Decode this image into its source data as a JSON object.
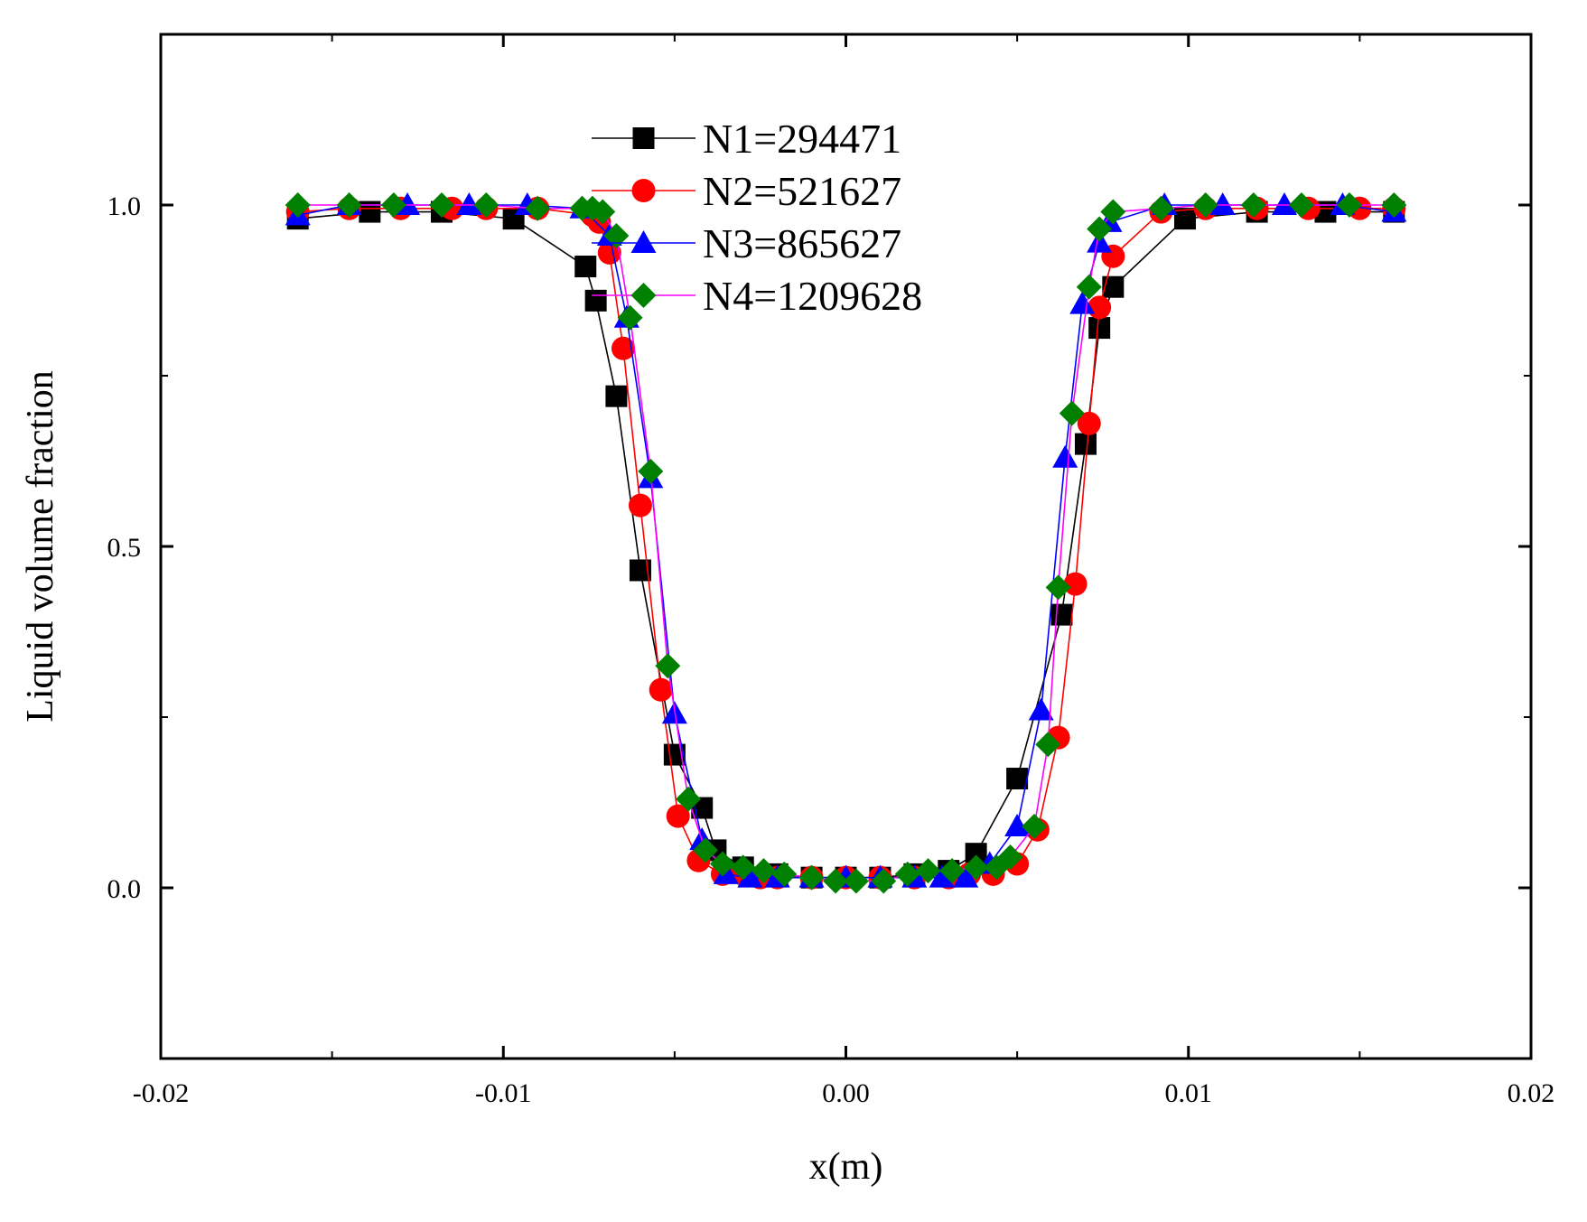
{
  "chart_data": {
    "type": "line",
    "xlabel": "x(m)",
    "ylabel": "Liquid volume fraction",
    "xlim": [
      -0.02,
      0.02
    ],
    "ylim": [
      -0.25,
      1.25
    ],
    "xticks": [
      -0.02,
      -0.01,
      0.0,
      0.01,
      0.02
    ],
    "xtick_labels": [
      "-0.02",
      "-0.01",
      "0.00",
      "0.01",
      "0.02"
    ],
    "yticks": [
      0.0,
      0.5,
      1.0
    ],
    "ytick_labels": [
      "0.0",
      "0.5",
      "1.0"
    ],
    "grid": false,
    "legend_position": "top-center",
    "series": [
      {
        "name": "N1=294471",
        "color": "#000000",
        "marker_color": "#000000",
        "marker": "square",
        "x": [
          -0.016,
          -0.0139,
          -0.0118,
          -0.0097,
          -0.0076,
          -0.0073,
          -0.0067,
          -0.006,
          -0.005,
          -0.0042,
          -0.0038,
          -0.003,
          -0.002,
          -0.001,
          0.0,
          0.001,
          0.002,
          0.003,
          0.0038,
          0.005,
          0.0063,
          0.007,
          0.0074,
          0.0078,
          0.0099,
          0.012,
          0.014,
          0.016
        ],
        "y": [
          0.98,
          0.99,
          0.99,
          0.98,
          0.91,
          0.86,
          0.72,
          0.465,
          0.195,
          0.117,
          0.055,
          0.03,
          0.02,
          0.015,
          0.015,
          0.015,
          0.02,
          0.025,
          0.05,
          0.16,
          0.4,
          0.65,
          0.82,
          0.88,
          0.98,
          0.99,
          0.99,
          0.99
        ]
      },
      {
        "name": "N2=521627",
        "color": "#ff0000",
        "marker_color": "#ff0000",
        "marker": "circle",
        "x": [
          -0.016,
          -0.0145,
          -0.013,
          -0.0115,
          -0.0105,
          -0.009,
          -0.0074,
          -0.0072,
          -0.0069,
          -0.0065,
          -0.006,
          -0.0054,
          -0.0049,
          -0.0043,
          -0.0036,
          -0.003,
          -0.0025,
          -0.002,
          -0.001,
          0.0,
          0.001,
          0.002,
          0.003,
          0.0036,
          0.0043,
          0.005,
          0.0056,
          0.0062,
          0.0067,
          0.0071,
          0.0074,
          0.0078,
          0.0092,
          0.0105,
          0.012,
          0.0135,
          0.015,
          0.016
        ],
        "y": [
          0.99,
          0.995,
          0.995,
          0.995,
          0.995,
          0.995,
          0.985,
          0.975,
          0.93,
          0.79,
          0.56,
          0.29,
          0.105,
          0.04,
          0.02,
          0.02,
          0.015,
          0.015,
          0.015,
          0.015,
          0.015,
          0.015,
          0.015,
          0.02,
          0.02,
          0.035,
          0.085,
          0.22,
          0.445,
          0.68,
          0.85,
          0.925,
          0.99,
          0.995,
          0.995,
          0.995,
          0.995,
          0.995
        ]
      },
      {
        "name": "N3=865627",
        "color": "#0000ff",
        "marker_color": "#0000ff",
        "marker": "triangle",
        "x": [
          -0.016,
          -0.0145,
          -0.0128,
          -0.011,
          -0.0093,
          -0.0077,
          -0.0069,
          -0.0064,
          -0.0057,
          -0.005,
          -0.0042,
          -0.0035,
          -0.0028,
          -0.002,
          -0.001,
          0.0,
          0.001,
          0.002,
          0.0028,
          0.0035,
          0.0042,
          0.005,
          0.0057,
          0.0064,
          0.0069,
          0.0074,
          0.0077,
          0.0093,
          0.011,
          0.0128,
          0.0145,
          0.016
        ],
        "y": [
          0.985,
          1.0,
          1.0,
          1.0,
          1.0,
          0.995,
          0.955,
          0.835,
          0.6,
          0.255,
          0.07,
          0.02,
          0.015,
          0.015,
          0.015,
          0.015,
          0.015,
          0.015,
          0.015,
          0.015,
          0.035,
          0.09,
          0.26,
          0.63,
          0.855,
          0.945,
          0.975,
          1.0,
          1.0,
          1.0,
          1.0,
          0.99
        ]
      },
      {
        "name": "N4=1209628",
        "color": "#ff00ff",
        "marker_color": "#008000",
        "marker": "diamond",
        "x": [
          -0.016,
          -0.0145,
          -0.0132,
          -0.0118,
          -0.0105,
          -0.009,
          -0.0077,
          -0.0074,
          -0.0071,
          -0.0067,
          -0.0063,
          -0.0057,
          -0.0052,
          -0.0046,
          -0.0041,
          -0.0036,
          -0.003,
          -0.0024,
          -0.0018,
          -0.001,
          -0.0003,
          0.0003,
          0.0011,
          0.0018,
          0.0024,
          0.0031,
          0.0038,
          0.0044,
          0.0048,
          0.0055,
          0.0059,
          0.0062,
          0.0066,
          0.0071,
          0.0074,
          0.0078,
          0.0092,
          0.0105,
          0.0119,
          0.0133,
          0.0147,
          0.016
        ],
        "y": [
          1.0,
          1.0,
          1.0,
          1.0,
          1.0,
          0.995,
          0.995,
          0.995,
          0.99,
          0.955,
          0.835,
          0.61,
          0.325,
          0.13,
          0.055,
          0.035,
          0.03,
          0.025,
          0.02,
          0.015,
          0.01,
          0.01,
          0.01,
          0.02,
          0.025,
          0.025,
          0.03,
          0.03,
          0.045,
          0.09,
          0.21,
          0.44,
          0.695,
          0.88,
          0.965,
          0.99,
          0.995,
          1.0,
          1.0,
          1.0,
          1.0,
          1.0
        ]
      }
    ]
  }
}
